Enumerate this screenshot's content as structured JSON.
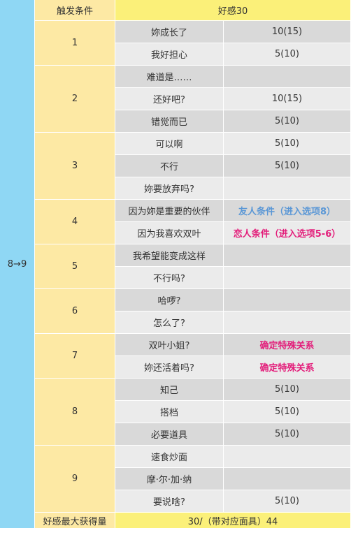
{
  "header": {
    "trigger": "触发条件",
    "value": "好感30"
  },
  "level": "8→9",
  "groups": [
    {
      "num": "1",
      "rows": [
        {
          "choice": "妳成长了",
          "value": "10(15)"
        },
        {
          "choice": "我好担心",
          "value": "5(10)"
        }
      ]
    },
    {
      "num": "2",
      "rows": [
        {
          "choice": "难道是……",
          "value": ""
        },
        {
          "choice": "还好吧?",
          "value": "10(15)"
        },
        {
          "choice": "错觉而已",
          "value": "5(10)"
        }
      ]
    },
    {
      "num": "3",
      "rows": [
        {
          "choice": "可以啊",
          "value": "5(10)"
        },
        {
          "choice": "不行",
          "value": "5(10)"
        },
        {
          "choice": "妳要放弃吗?",
          "value": ""
        }
      ]
    },
    {
      "num": "4",
      "rows": [
        {
          "choice": "因为妳是重要的伙伴",
          "value": "友人条件（进入选项8）",
          "style": "blue"
        },
        {
          "choice": "因为我喜欢双叶",
          "value": "恋人条件（进入选项5-6）",
          "style": "pink"
        }
      ]
    },
    {
      "num": "5",
      "rows": [
        {
          "choice": "我希望能变成这样",
          "value": ""
        },
        {
          "choice": "不行吗?",
          "value": ""
        }
      ]
    },
    {
      "num": "6",
      "rows": [
        {
          "choice": "哈啰?",
          "value": ""
        },
        {
          "choice": "怎么了?",
          "value": ""
        }
      ]
    },
    {
      "num": "7",
      "rows": [
        {
          "choice": "双叶小姐?",
          "value": "确定特殊关系",
          "style": "pink"
        },
        {
          "choice": "妳还活着吗?",
          "value": "确定特殊关系",
          "style": "pink"
        }
      ]
    },
    {
      "num": "8",
      "rows": [
        {
          "choice": "知己",
          "value": "5(10)"
        },
        {
          "choice": "搭档",
          "value": "5(10)"
        },
        {
          "choice": "必要道具",
          "value": "5(10)"
        }
      ]
    },
    {
      "num": "9",
      "rows": [
        {
          "choice": "速食炒面",
          "value": ""
        },
        {
          "choice": "摩·尔·加·纳",
          "value": ""
        },
        {
          "choice": "要说啥?",
          "value": "5(10)"
        }
      ]
    }
  ],
  "footer": {
    "label": "好感最大获得量",
    "value": "30/（带对应面具）44"
  },
  "colors": {
    "level_bg": "#8fd7f4",
    "trigger_bg": "#fde9a4",
    "header_value_bg": "#fbf079",
    "row_bg": "#d9d9d9",
    "row_alt_bg": "#ebebeb",
    "blue_text": "#5a97d6",
    "pink_text": "#e31d7a"
  }
}
